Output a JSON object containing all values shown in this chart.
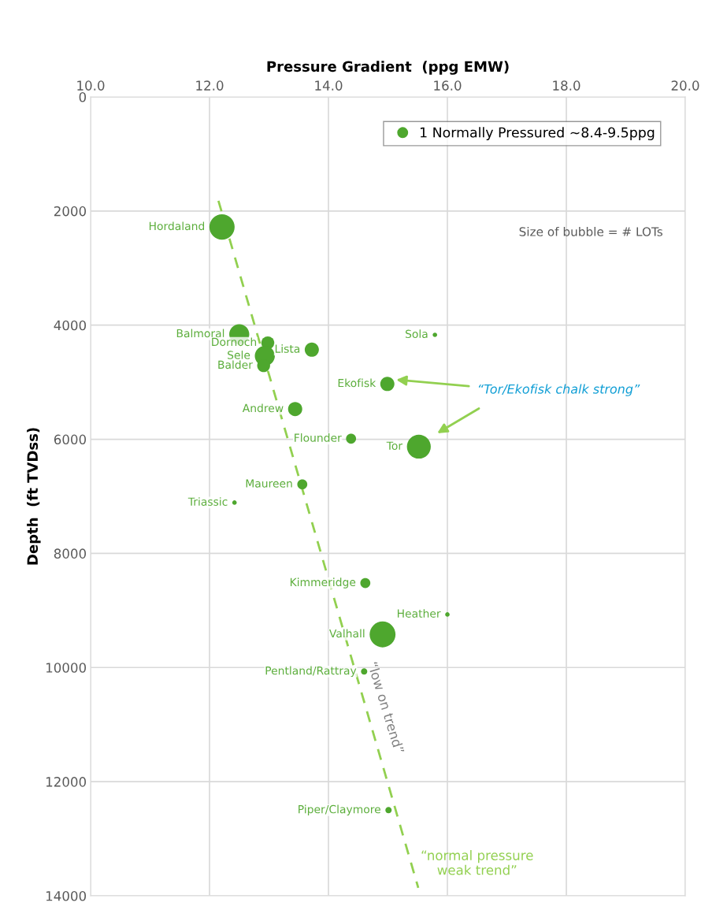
{
  "chart_data": {
    "type": "bubble",
    "xlabel": "Pressure Gradient  (ppg EMW)",
    "ylabel": "Depth  (ft TVDss)",
    "xlim": [
      10,
      20
    ],
    "xticks": [
      {
        "value": 10,
        "label": "10.0"
      },
      {
        "value": 12,
        "label": "12.0"
      },
      {
        "value": 14,
        "label": "14.0"
      },
      {
        "value": 16,
        "label": "16.0"
      },
      {
        "value": 18,
        "label": "18.0"
      },
      {
        "value": 20,
        "label": "20.0"
      }
    ],
    "ylim": [
      14000,
      0
    ],
    "yticks": [
      0,
      2000,
      4000,
      6000,
      8000,
      10000,
      12000,
      14000
    ],
    "grid": true,
    "legend": "top right",
    "series": [
      {
        "name": "1 Normally Pressured ~8.4-9.5ppg",
        "color": "#4ea72e",
        "x": [
          12.21,
          12.5,
          12.98,
          13.72,
          12.93,
          12.91,
          15.79,
          14.99,
          13.44,
          14.38,
          15.52,
          13.56,
          12.42,
          14.62,
          16.0,
          14.91,
          14.6,
          15.01
        ],
        "values": [
          2280,
          4160,
          4310,
          4430,
          4540,
          4710,
          4170,
          5030,
          5470,
          5990,
          6130,
          6790,
          7110,
          8520,
          9070,
          9420,
          10070,
          12500
        ],
        "sizes": [
          0.95,
          0.6,
          0.25,
          0.3,
          0.6,
          0.25,
          0.03,
          0.3,
          0.3,
          0.15,
          0.85,
          0.15,
          0.03,
          0.15,
          0.03,
          1,
          0.06,
          0.06
        ],
        "value_labels": [
          "Hordaland",
          "Balmoral",
          "Dornoch",
          "Lista",
          "Sele",
          "Balder",
          "Sola",
          "Ekofisk",
          "Andrew",
          "Flounder",
          "Tor",
          "Maureen",
          "Triassic",
          "Kimmeridge",
          "Heather",
          "Valhall",
          "Pentland/Rattray",
          "Piper/Claymore"
        ]
      },
      {
        "type": "line",
        "color": "#92d050",
        "line_style": "dashed",
        "x": [
          12.15,
          15.51
        ],
        "values": [
          1820,
          13860
        ]
      }
    ],
    "annotations": [
      "Size of bubble = # LOTs",
      "“Tor/Ekofisk chalk strong”",
      "“low on trend”",
      "“normal pressure\nweak trend”"
    ]
  }
}
